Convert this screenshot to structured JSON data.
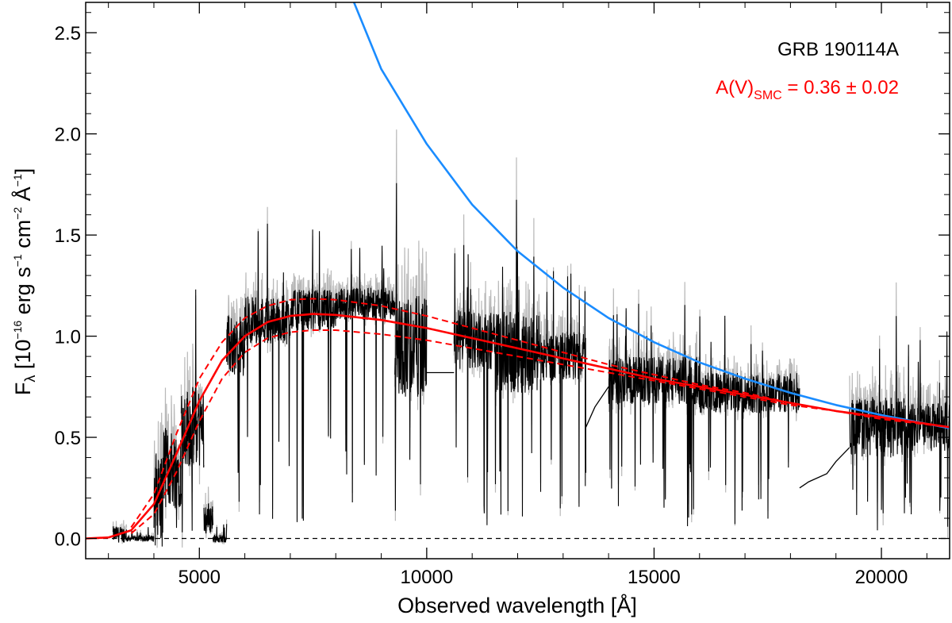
{
  "chart_data": {
    "type": "line",
    "xlabel": "Observed wavelength [Å]",
    "ylabel": {
      "prefix": "F",
      "sub": "λ",
      "body": " [10",
      "exp": "−16",
      "unit1": " erg s",
      "exp1": "−1",
      "unit2": " cm",
      "exp2": "−2",
      "unit3": " Å",
      "exp3": "−1",
      "close": "]"
    },
    "xlim": [
      2500,
      21500
    ],
    "ylim": [
      -0.1,
      2.65
    ],
    "xticks": [
      5000,
      10000,
      15000,
      20000
    ],
    "xtick_labels": [
      "5000",
      "10000",
      "15000",
      "20000"
    ],
    "yticks": [
      0.0,
      0.5,
      1.0,
      1.5,
      2.0,
      2.5
    ],
    "ytick_labels": [
      "0.0",
      "0.5",
      "1.0",
      "1.5",
      "2.0",
      "2.5"
    ],
    "annotations": {
      "object": "GRB 190114A",
      "av_prefix": "A(V)",
      "av_sub": "SMC",
      "av_value": " = 0.36 ± 0.02"
    },
    "colors": {
      "spectrum": "#000000",
      "error": "#b8b8b8",
      "model": "#ff0000",
      "intrinsic": "#1a8cff",
      "zero": "#000000"
    },
    "series": [
      {
        "name": "intrinsic power law",
        "style": "solid",
        "x": [
          8400,
          9000,
          10000,
          11000,
          12000,
          13000,
          14000,
          15000,
          16000,
          17000,
          18000,
          19000,
          20000,
          21500
        ],
        "y": [
          2.65,
          2.32,
          1.95,
          1.65,
          1.42,
          1.24,
          1.09,
          0.97,
          0.87,
          0.79,
          0.72,
          0.66,
          0.61,
          0.545
        ]
      },
      {
        "name": "SMC extinguished model",
        "style": "solid",
        "x": [
          2500,
          3000,
          3500,
          4000,
          4500,
          5000,
          5500,
          6000,
          6500,
          7000,
          7500,
          8000,
          9000,
          10000,
          11000,
          12000,
          13000,
          14000,
          15000,
          16000,
          17000,
          18000,
          19000,
          20000,
          21500
        ],
        "y": [
          0.0,
          0.005,
          0.04,
          0.17,
          0.42,
          0.68,
          0.88,
          1.0,
          1.07,
          1.1,
          1.11,
          1.105,
          1.08,
          1.04,
          0.99,
          0.94,
          0.89,
          0.84,
          0.79,
          0.75,
          0.71,
          0.67,
          0.63,
          0.6,
          0.55
        ]
      },
      {
        "name": "model upper bound",
        "style": "dashed",
        "x": [
          3500,
          4000,
          4500,
          5000,
          5500,
          6000,
          6500,
          7000,
          7500,
          8000,
          9000,
          10000,
          11000,
          12000,
          13000,
          14000,
          15000,
          16000,
          17000,
          18000,
          19000,
          20000,
          21500
        ],
        "y": [
          0.055,
          0.22,
          0.52,
          0.79,
          0.97,
          1.09,
          1.15,
          1.18,
          1.185,
          1.18,
          1.15,
          1.1,
          1.04,
          0.98,
          0.92,
          0.86,
          0.81,
          0.76,
          0.72,
          0.67,
          0.63,
          0.59,
          0.55
        ]
      },
      {
        "name": "model lower bound",
        "style": "dashed",
        "x": [
          3500,
          4000,
          4500,
          5000,
          5500,
          6000,
          6500,
          7000,
          7500,
          8000,
          9000,
          10000,
          11000,
          12000,
          13000,
          14000,
          15000,
          16000,
          17000,
          18000,
          19000,
          20000,
          21500
        ],
        "y": [
          0.025,
          0.12,
          0.33,
          0.58,
          0.79,
          0.92,
          0.99,
          1.02,
          1.03,
          1.03,
          1.01,
          0.98,
          0.94,
          0.9,
          0.86,
          0.82,
          0.78,
          0.74,
          0.7,
          0.66,
          0.63,
          0.6,
          0.55
        ]
      }
    ],
    "spectrum_segments": [
      {
        "x0": 3100,
        "x1": 3400,
        "level": 0.02,
        "scatter": 0.04
      },
      {
        "x0": 3400,
        "x1": 4000,
        "level": 0.0,
        "scatter": 0.015
      },
      {
        "x0": 4000,
        "x1": 4200,
        "level": 0.2,
        "scatter": 0.25
      },
      {
        "x0": 4200,
        "x1": 4600,
        "level": 0.35,
        "scatter": 0.2
      },
      {
        "x0": 4600,
        "x1": 5100,
        "level": 0.55,
        "scatter": 0.2
      },
      {
        "x0": 5100,
        "x1": 5300,
        "level": 0.1,
        "scatter": 0.08
      },
      {
        "x0": 5300,
        "x1": 5600,
        "level": 0.0,
        "scatter": 0.02
      },
      {
        "x0": 5600,
        "x1": 6000,
        "level": 0.95,
        "scatter": 0.15
      },
      {
        "x0": 6000,
        "x1": 7000,
        "level": 1.08,
        "scatter": 0.12
      },
      {
        "x0": 7000,
        "x1": 8000,
        "level": 1.13,
        "scatter": 0.1
      },
      {
        "x0": 8000,
        "x1": 9300,
        "level": 1.16,
        "scatter": 0.08
      },
      {
        "x0": 9300,
        "x1": 10000,
        "level": 0.95,
        "scatter": 0.25
      },
      {
        "x0": 10600,
        "x1": 11500,
        "level": 0.98,
        "scatter": 0.15
      },
      {
        "x0": 11500,
        "x1": 12500,
        "level": 0.92,
        "scatter": 0.2
      },
      {
        "x0": 12500,
        "x1": 13500,
        "level": 0.9,
        "scatter": 0.12
      },
      {
        "x0": 14000,
        "x1": 16000,
        "level": 0.78,
        "scatter": 0.12
      },
      {
        "x0": 16000,
        "x1": 18200,
        "level": 0.72,
        "scatter": 0.1
      },
      {
        "x0": 19300,
        "x1": 20500,
        "level": 0.55,
        "scatter": 0.15
      },
      {
        "x0": 20500,
        "x1": 21500,
        "level": 0.55,
        "scatter": 0.12
      }
    ],
    "spectrum_bridges": [
      {
        "x": [
          10000,
          10100,
          10600
        ],
        "y": [
          0.82,
          0.82,
          0.82
        ]
      },
      {
        "x": [
          13500,
          13700,
          14000
        ],
        "y": [
          0.55,
          0.65,
          0.75
        ]
      },
      {
        "x": [
          18200,
          18400,
          18800,
          19000,
          19300
        ],
        "y": [
          0.25,
          0.28,
          0.32,
          0.38,
          0.45
        ]
      }
    ]
  }
}
